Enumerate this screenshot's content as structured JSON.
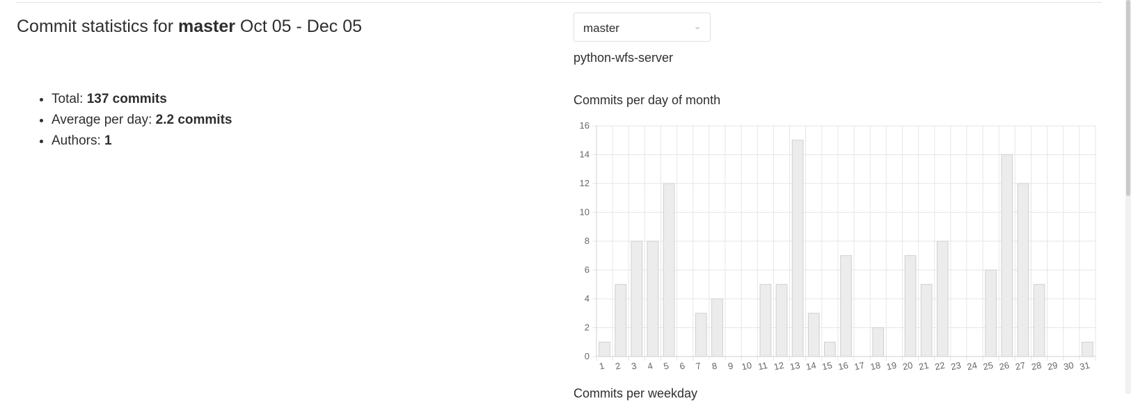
{
  "header": {
    "title_prefix": "Commit statistics for ",
    "branch": "master",
    "date_range": " Oct 05 - Dec 05"
  },
  "stats": {
    "total_label": "Total: ",
    "total_value": "137 commits",
    "average_label": "Average per day: ",
    "average_value": "2.2 commits",
    "authors_label": "Authors: ",
    "authors_value": "1"
  },
  "branch_select": {
    "selected": "master"
  },
  "project": {
    "name": "python-wfs-server"
  },
  "chart_caption": "Commits per day of month",
  "next_caption": "Commits per weekday",
  "chart_data": {
    "type": "bar",
    "title": "Commits per day of month",
    "xlabel": "",
    "ylabel": "",
    "categories": [
      "1",
      "2",
      "3",
      "4",
      "5",
      "6",
      "7",
      "8",
      "9",
      "10",
      "11",
      "12",
      "13",
      "14",
      "15",
      "16",
      "17",
      "18",
      "19",
      "20",
      "21",
      "22",
      "23",
      "24",
      "25",
      "26",
      "27",
      "28",
      "29",
      "30",
      "31"
    ],
    "values": [
      1,
      5,
      8,
      8,
      12,
      0,
      3,
      4,
      0,
      0,
      5,
      5,
      15,
      3,
      1,
      7,
      0,
      2,
      0,
      7,
      5,
      8,
      0,
      0,
      6,
      14,
      12,
      5,
      0,
      0,
      1
    ],
    "ylim": [
      0,
      16
    ],
    "yticks": [
      0,
      2,
      4,
      6,
      8,
      10,
      12,
      14,
      16
    ],
    "grid": true,
    "colors": {
      "bar_fill": "#ececec",
      "bar_stroke": "#cfcfcf",
      "grid": "#e6e6e6"
    }
  }
}
